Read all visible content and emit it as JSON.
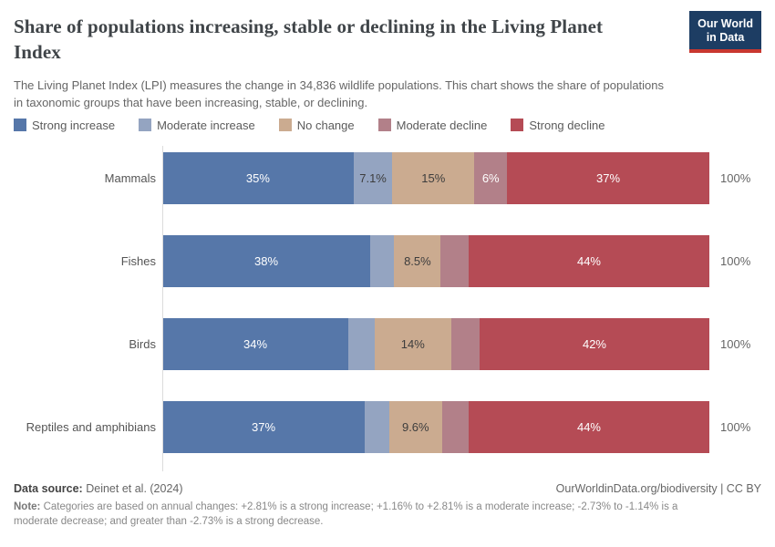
{
  "header": {
    "title": "Share of populations increasing, stable or declining in the Living Planet Index",
    "subtitle": "The Living Planet Index (LPI) measures the change in 34,836 wildlife populations. This chart shows the share of populations in taxonomic groups that have been increasing, stable, or declining.",
    "logo": {
      "line1": "Our World",
      "line2": "in Data",
      "bg_color": "#1d3d63",
      "accent_color": "#c9372f"
    }
  },
  "chart_data": {
    "type": "bar",
    "variant": "horizontal-stacked",
    "unit": "%",
    "categories": [
      "Mammals",
      "Fishes",
      "Birds",
      "Reptiles and amphibians"
    ],
    "series_names": [
      "Strong increase",
      "Moderate increase",
      "No change",
      "Moderate decline",
      "Strong decline"
    ],
    "series_colors": [
      "#5677a9",
      "#94a4c1",
      "#cbab90",
      "#b28089",
      "#b54b55"
    ],
    "segment_label_colors": [
      "#ffffff",
      "#3d3d3d",
      "#3d3d3d",
      "#ffffff",
      "#ffffff"
    ],
    "xlim": [
      0,
      100
    ],
    "grid": false,
    "legend_position": "top",
    "rows": [
      {
        "category": "Mammals",
        "values": [
          35,
          7.1,
          15,
          6,
          37
        ],
        "labels": [
          "35%",
          "7.1%",
          "15%",
          "6%",
          "37%"
        ],
        "total_label": "100%"
      },
      {
        "category": "Fishes",
        "values": [
          38,
          4.4,
          8.5,
          5.1,
          44
        ],
        "labels": [
          "38%",
          "",
          "8.5%",
          "",
          "44%"
        ],
        "total_label": "100%"
      },
      {
        "category": "Birds",
        "values": [
          34,
          4.8,
          14,
          5.2,
          42
        ],
        "labels": [
          "34%",
          "",
          "14%",
          "",
          "42%"
        ],
        "total_label": "100%"
      },
      {
        "category": "Reptiles and amphibians",
        "values": [
          37,
          4.5,
          9.6,
          4.9,
          44
        ],
        "labels": [
          "37%",
          "",
          "9.6%",
          "",
          "44%"
        ],
        "total_label": "100%"
      }
    ]
  },
  "footer": {
    "data_source_label": "Data source:",
    "data_source_value": "Deinet et al. (2024)",
    "link": "OurWorldinData.org/biodiversity | CC BY",
    "note_label": "Note:",
    "note_text": "Categories are based on annual changes: +2.81% is a strong increase; +1.16% to +2.81% is a moderate increase; -2.73% to -1.14% is a moderate decrease; and greater than -2.73% is a strong decrease."
  }
}
